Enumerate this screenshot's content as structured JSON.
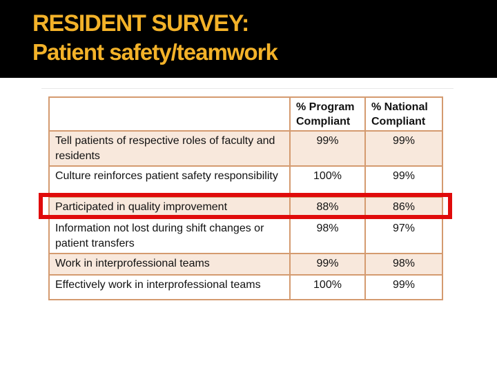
{
  "slide": {
    "title_line1": "RESIDENT SURVEY:",
    "title_line2": "Patient safety/teamwork"
  },
  "table": {
    "headers": {
      "metric": "",
      "program": "% Program Compliant",
      "national": "% National Compliant"
    },
    "rows": [
      {
        "label": "Tell patients of respective roles of faculty and residents",
        "program": "99%",
        "national": "99%"
      },
      {
        "label": "Culture reinforces patient safety responsibility",
        "program": "100%",
        "national": "99%"
      },
      {
        "label": "Participated in quality improvement",
        "program": "88%",
        "national": "86%"
      },
      {
        "label": "Information not lost during shift changes or patient transfers",
        "program": "98%",
        "national": "97%"
      },
      {
        "label": "Work in interprofessional teams",
        "program": "99%",
        "national": "98%"
      },
      {
        "label": "Effectively work in interprofessional teams",
        "program": "100%",
        "national": "99%"
      }
    ],
    "highlighted_row": "Participated in quality improvement"
  },
  "colors": {
    "title_gold": "#F3B229",
    "band_black": "#000000",
    "table_border_tan": "#D49A6F",
    "row_shade_peach": "#F8E8DC",
    "highlight_red": "#E00B0B"
  }
}
